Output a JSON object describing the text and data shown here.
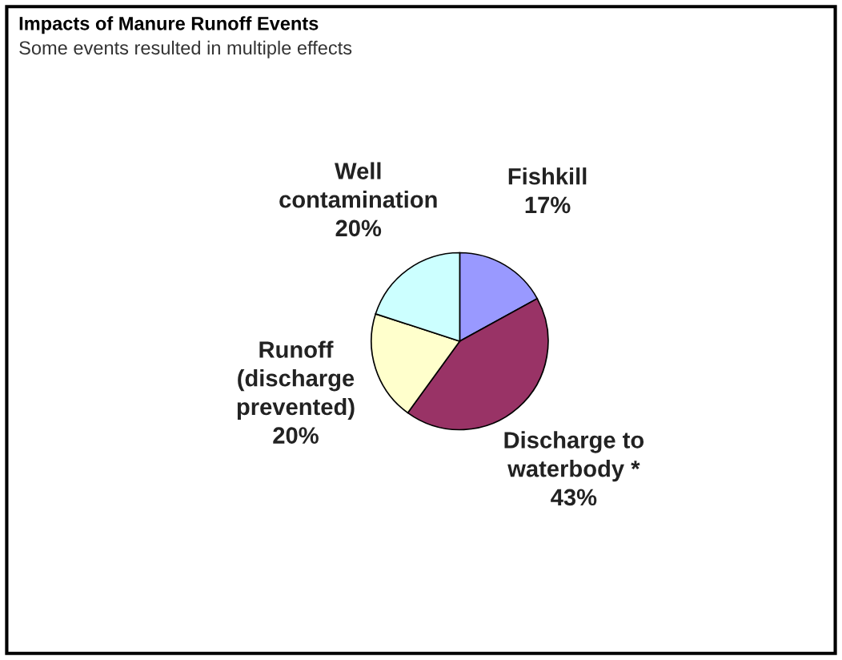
{
  "chart_data": {
    "type": "pie",
    "title": "Impacts of Manure Runoff Events",
    "subtitle": "Some events resulted in multiple effects",
    "categories": [
      "Fishkill",
      "Discharge to\nwaterbody *",
      "Runoff\n(discharge\nprevented)",
      "Well\ncontamination"
    ],
    "values": [
      17,
      43,
      20,
      20
    ],
    "value_labels": [
      "17%",
      "43%",
      "20%",
      "20%"
    ],
    "colors": [
      "#9999ff",
      "#993366",
      "#ffffcc",
      "#ccffff"
    ]
  }
}
